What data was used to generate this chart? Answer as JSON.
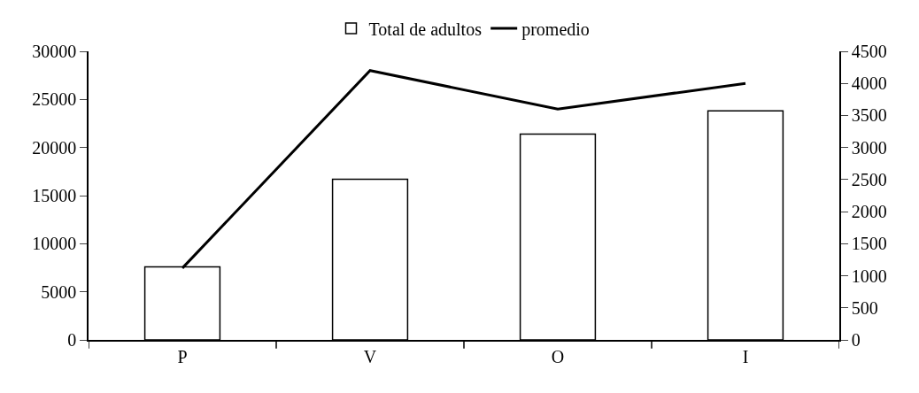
{
  "chart_data": {
    "type": "bar",
    "categories": [
      "P",
      "V",
      "O",
      "I"
    ],
    "series": [
      {
        "name": "Total de adultos",
        "color": "#ffffff",
        "values": [
          7600,
          16700,
          21400,
          23800
        ]
      },
      {
        "name": "promedio",
        "type": "line",
        "axis": "y2",
        "color": "#000000",
        "values": [
          1120,
          4200,
          3600,
          4000
        ]
      }
    ],
    "ylim": [
      0,
      30000
    ],
    "yticks": [
      0,
      5000,
      10000,
      15000,
      20000,
      25000,
      30000
    ],
    "y2lim": [
      0,
      4500
    ],
    "y2ticks": [
      0,
      500,
      1000,
      1500,
      2000,
      2500,
      3000,
      3500,
      4000,
      4500
    ],
    "grid": false,
    "legend": "top",
    "marker": "none",
    "line_style": "solid"
  }
}
